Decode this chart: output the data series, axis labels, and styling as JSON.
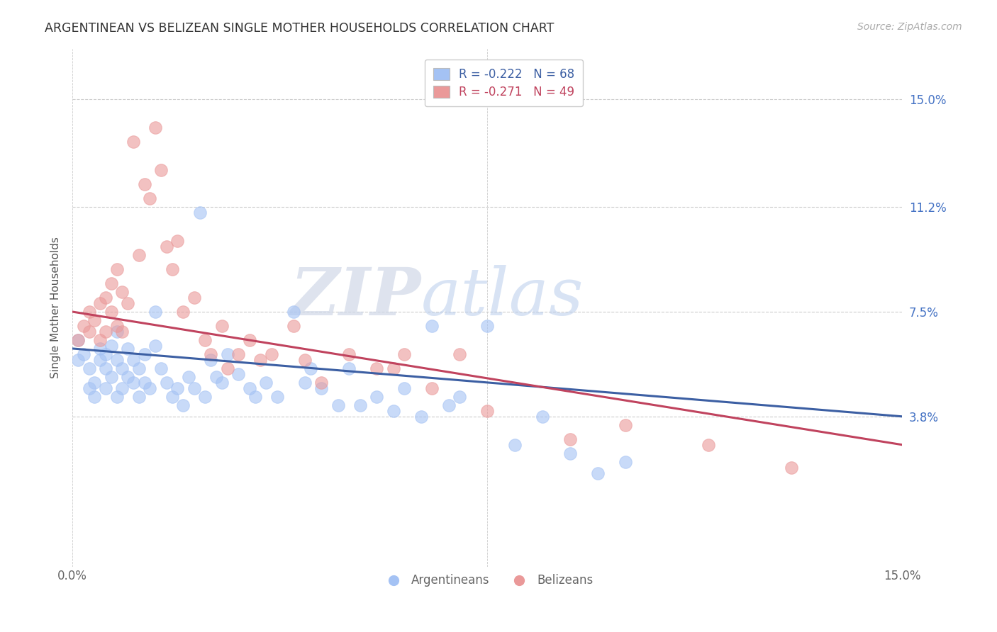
{
  "title": "ARGENTINEAN VS BELIZEAN SINGLE MOTHER HOUSEHOLDS CORRELATION CHART",
  "source": "Source: ZipAtlas.com",
  "ylabel": "Single Mother Households",
  "ytick_labels": [
    "15.0%",
    "11.2%",
    "7.5%",
    "3.8%"
  ],
  "ytick_values": [
    0.15,
    0.112,
    0.075,
    0.038
  ],
  "xmin": 0.0,
  "xmax": 0.15,
  "ymin": -0.015,
  "ymax": 0.168,
  "legend_blue_label": "R = -0.222   N = 68",
  "legend_pink_label": "R = -0.271   N = 49",
  "legend_bottom_blue": "Argentineans",
  "legend_bottom_pink": "Belizeans",
  "blue_color": "#a4c2f4",
  "pink_color": "#ea9999",
  "blue_line_color": "#3c5fa3",
  "pink_line_color": "#c0435e",
  "watermark_zip": "ZIP",
  "watermark_atlas": "atlas",
  "blue_trend_x0": 0.0,
  "blue_trend_y0": 0.062,
  "blue_trend_x1": 0.15,
  "blue_trend_y1": 0.038,
  "pink_trend_x0": 0.0,
  "pink_trend_y0": 0.075,
  "pink_trend_x1": 0.15,
  "pink_trend_y1": 0.028,
  "argentinean_x": [
    0.001,
    0.001,
    0.002,
    0.003,
    0.003,
    0.004,
    0.004,
    0.005,
    0.005,
    0.006,
    0.006,
    0.006,
    0.007,
    0.007,
    0.008,
    0.008,
    0.008,
    0.009,
    0.009,
    0.01,
    0.01,
    0.011,
    0.011,
    0.012,
    0.012,
    0.013,
    0.013,
    0.014,
    0.015,
    0.015,
    0.016,
    0.017,
    0.018,
    0.019,
    0.02,
    0.021,
    0.022,
    0.023,
    0.024,
    0.025,
    0.026,
    0.027,
    0.028,
    0.03,
    0.032,
    0.033,
    0.035,
    0.037,
    0.04,
    0.042,
    0.043,
    0.045,
    0.048,
    0.05,
    0.052,
    0.055,
    0.058,
    0.06,
    0.063,
    0.065,
    0.068,
    0.07,
    0.075,
    0.08,
    0.085,
    0.09,
    0.095,
    0.1
  ],
  "argentinean_y": [
    0.065,
    0.058,
    0.06,
    0.055,
    0.048,
    0.05,
    0.045,
    0.058,
    0.062,
    0.06,
    0.055,
    0.048,
    0.063,
    0.052,
    0.068,
    0.058,
    0.045,
    0.055,
    0.048,
    0.062,
    0.052,
    0.058,
    0.05,
    0.055,
    0.045,
    0.06,
    0.05,
    0.048,
    0.075,
    0.063,
    0.055,
    0.05,
    0.045,
    0.048,
    0.042,
    0.052,
    0.048,
    0.11,
    0.045,
    0.058,
    0.052,
    0.05,
    0.06,
    0.053,
    0.048,
    0.045,
    0.05,
    0.045,
    0.075,
    0.05,
    0.055,
    0.048,
    0.042,
    0.055,
    0.042,
    0.045,
    0.04,
    0.048,
    0.038,
    0.07,
    0.042,
    0.045,
    0.07,
    0.028,
    0.038,
    0.025,
    0.018,
    0.022
  ],
  "belizean_x": [
    0.001,
    0.002,
    0.003,
    0.003,
    0.004,
    0.005,
    0.005,
    0.006,
    0.006,
    0.007,
    0.007,
    0.008,
    0.008,
    0.009,
    0.009,
    0.01,
    0.011,
    0.012,
    0.013,
    0.014,
    0.015,
    0.016,
    0.017,
    0.018,
    0.019,
    0.02,
    0.022,
    0.024,
    0.025,
    0.027,
    0.028,
    0.03,
    0.032,
    0.034,
    0.036,
    0.04,
    0.042,
    0.045,
    0.05,
    0.055,
    0.058,
    0.06,
    0.065,
    0.07,
    0.075,
    0.09,
    0.1,
    0.115,
    0.13
  ],
  "belizean_y": [
    0.065,
    0.07,
    0.075,
    0.068,
    0.072,
    0.078,
    0.065,
    0.068,
    0.08,
    0.085,
    0.075,
    0.07,
    0.09,
    0.082,
    0.068,
    0.078,
    0.135,
    0.095,
    0.12,
    0.115,
    0.14,
    0.125,
    0.098,
    0.09,
    0.1,
    0.075,
    0.08,
    0.065,
    0.06,
    0.07,
    0.055,
    0.06,
    0.065,
    0.058,
    0.06,
    0.07,
    0.058,
    0.05,
    0.06,
    0.055,
    0.055,
    0.06,
    0.048,
    0.06,
    0.04,
    0.03,
    0.035,
    0.028,
    0.02
  ]
}
